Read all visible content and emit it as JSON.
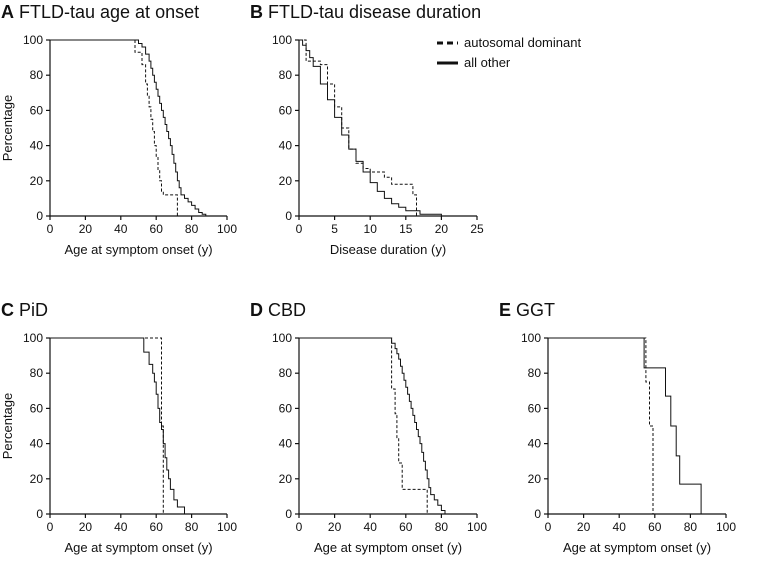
{
  "figure": {
    "legend": {
      "dashed_label": "autosomal dominant",
      "solid_label": "all other"
    }
  },
  "chart_data": [
    {
      "id": "A",
      "type": "line",
      "step": true,
      "letter": "A",
      "title": "FTLD-tau age at onset",
      "xlabel": "Age at symptom onset (y)",
      "ylabel": "Percentage",
      "xlim": [
        0,
        100
      ],
      "ylim": [
        0,
        100
      ],
      "xticks": [
        0,
        20,
        40,
        60,
        80,
        100
      ],
      "yticks": [
        0,
        20,
        40,
        60,
        80,
        100
      ],
      "series": [
        {
          "name": "autosomal dominant",
          "style": "dashed",
          "x": [
            0,
            43,
            48,
            52,
            54,
            55,
            56,
            57,
            58,
            59,
            60,
            61,
            62,
            63,
            64,
            66,
            72,
            72
          ],
          "y": [
            100,
            100,
            93,
            86,
            75,
            68,
            62,
            55,
            48,
            40,
            34,
            26,
            20,
            14,
            12,
            12,
            12,
            0
          ]
        },
        {
          "name": "all other",
          "style": "solid",
          "x": [
            0,
            48,
            50,
            52,
            54,
            56,
            57,
            58,
            59,
            60,
            61,
            62,
            63,
            64,
            65,
            66,
            67,
            68,
            69,
            70,
            71,
            72,
            73,
            74,
            76,
            78,
            80,
            82,
            84,
            86,
            88
          ],
          "y": [
            100,
            100,
            98,
            96,
            92,
            88,
            84,
            80,
            76,
            72,
            68,
            64,
            60,
            56,
            52,
            48,
            44,
            40,
            35,
            30,
            25,
            20,
            16,
            12,
            10,
            8,
            6,
            4,
            2,
            1,
            0
          ]
        }
      ]
    },
    {
      "id": "B",
      "type": "line",
      "step": true,
      "letter": "B",
      "title": "FTLD-tau disease duration",
      "xlabel": "Disease duration (y)",
      "ylabel": "",
      "xlim": [
        0,
        25
      ],
      "ylim": [
        0,
        100
      ],
      "xticks": [
        0,
        5,
        10,
        15,
        20,
        25
      ],
      "yticks": [
        0,
        20,
        40,
        60,
        80,
        100
      ],
      "series": [
        {
          "name": "autosomal dominant",
          "style": "dashed",
          "x": [
            0,
            1,
            3,
            4,
            5,
            6,
            7,
            8,
            9,
            10,
            12,
            13,
            15,
            16,
            16.5
          ],
          "y": [
            100,
            88,
            86,
            75,
            62,
            50,
            38,
            30,
            27,
            25,
            22,
            18,
            18,
            12,
            0
          ]
        },
        {
          "name": "all other",
          "style": "solid",
          "x": [
            0,
            0.5,
            1,
            1.5,
            2,
            3,
            4,
            5,
            6,
            7,
            8,
            9,
            10,
            11,
            12,
            13,
            14,
            15,
            17,
            20
          ],
          "y": [
            100,
            97,
            94,
            90,
            85,
            75,
            66,
            56,
            46,
            38,
            31,
            25,
            19,
            14,
            10,
            7,
            5,
            3,
            1,
            0
          ]
        }
      ]
    },
    {
      "id": "C",
      "type": "line",
      "step": true,
      "letter": "C",
      "title": "PiD",
      "xlabel": "Age at symptom onset (y)",
      "ylabel": "Percentage",
      "xlim": [
        0,
        100
      ],
      "ylim": [
        0,
        100
      ],
      "xticks": [
        0,
        20,
        40,
        60,
        80,
        100
      ],
      "yticks": [
        0,
        20,
        40,
        60,
        80,
        100
      ],
      "series": [
        {
          "name": "autosomal dominant",
          "style": "dashed",
          "x": [
            0,
            43,
            63,
            64
          ],
          "y": [
            100,
            100,
            50,
            0
          ]
        },
        {
          "name": "all other",
          "style": "solid",
          "x": [
            0,
            50,
            53,
            56,
            58,
            59,
            60,
            61,
            62,
            63,
            64,
            65,
            66,
            67,
            68,
            70,
            72,
            76
          ],
          "y": [
            100,
            100,
            92,
            85,
            80,
            75,
            68,
            60,
            52,
            48,
            40,
            32,
            25,
            20,
            14,
            8,
            4,
            0
          ]
        }
      ]
    },
    {
      "id": "D",
      "type": "line",
      "step": true,
      "letter": "D",
      "title": "CBD",
      "xlabel": "Age at symptom onset (y)",
      "ylabel": "",
      "xlim": [
        0,
        100
      ],
      "ylim": [
        0,
        100
      ],
      "xticks": [
        0,
        20,
        40,
        60,
        80,
        100
      ],
      "yticks": [
        0,
        20,
        40,
        60,
        80,
        100
      ],
      "series": [
        {
          "name": "autosomal dominant",
          "style": "dashed",
          "x": [
            0,
            48,
            52,
            54,
            55,
            56,
            58,
            72
          ],
          "y": [
            100,
            100,
            71,
            57,
            43,
            29,
            14,
            0
          ]
        },
        {
          "name": "all other",
          "style": "solid",
          "x": [
            0,
            50,
            52,
            54,
            55,
            56,
            57,
            58,
            59,
            60,
            61,
            62,
            63,
            64,
            65,
            66,
            67,
            68,
            69,
            70,
            71,
            72,
            73,
            74,
            76,
            78,
            80,
            82
          ],
          "y": [
            100,
            100,
            97,
            94,
            91,
            88,
            84,
            80,
            76,
            72,
            68,
            64,
            60,
            56,
            52,
            48,
            44,
            40,
            35,
            30,
            25,
            20,
            15,
            11,
            8,
            5,
            2,
            0
          ]
        }
      ]
    },
    {
      "id": "E",
      "type": "line",
      "step": true,
      "letter": "E",
      "title": "GGT",
      "xlabel": "Age at symptom onset (y)",
      "ylabel": "",
      "xlim": [
        0,
        100
      ],
      "ylim": [
        0,
        100
      ],
      "xticks": [
        0,
        20,
        40,
        60,
        80,
        100
      ],
      "yticks": [
        0,
        20,
        40,
        60,
        80,
        100
      ],
      "series": [
        {
          "name": "autosomal dominant",
          "style": "dashed",
          "x": [
            0,
            54,
            55,
            57,
            59
          ],
          "y": [
            100,
            100,
            75,
            50,
            0
          ]
        },
        {
          "name": "all other",
          "style": "solid",
          "x": [
            0,
            54,
            66,
            69,
            72,
            74,
            86
          ],
          "y": [
            100,
            83,
            67,
            50,
            33,
            17,
            0
          ]
        }
      ]
    }
  ]
}
